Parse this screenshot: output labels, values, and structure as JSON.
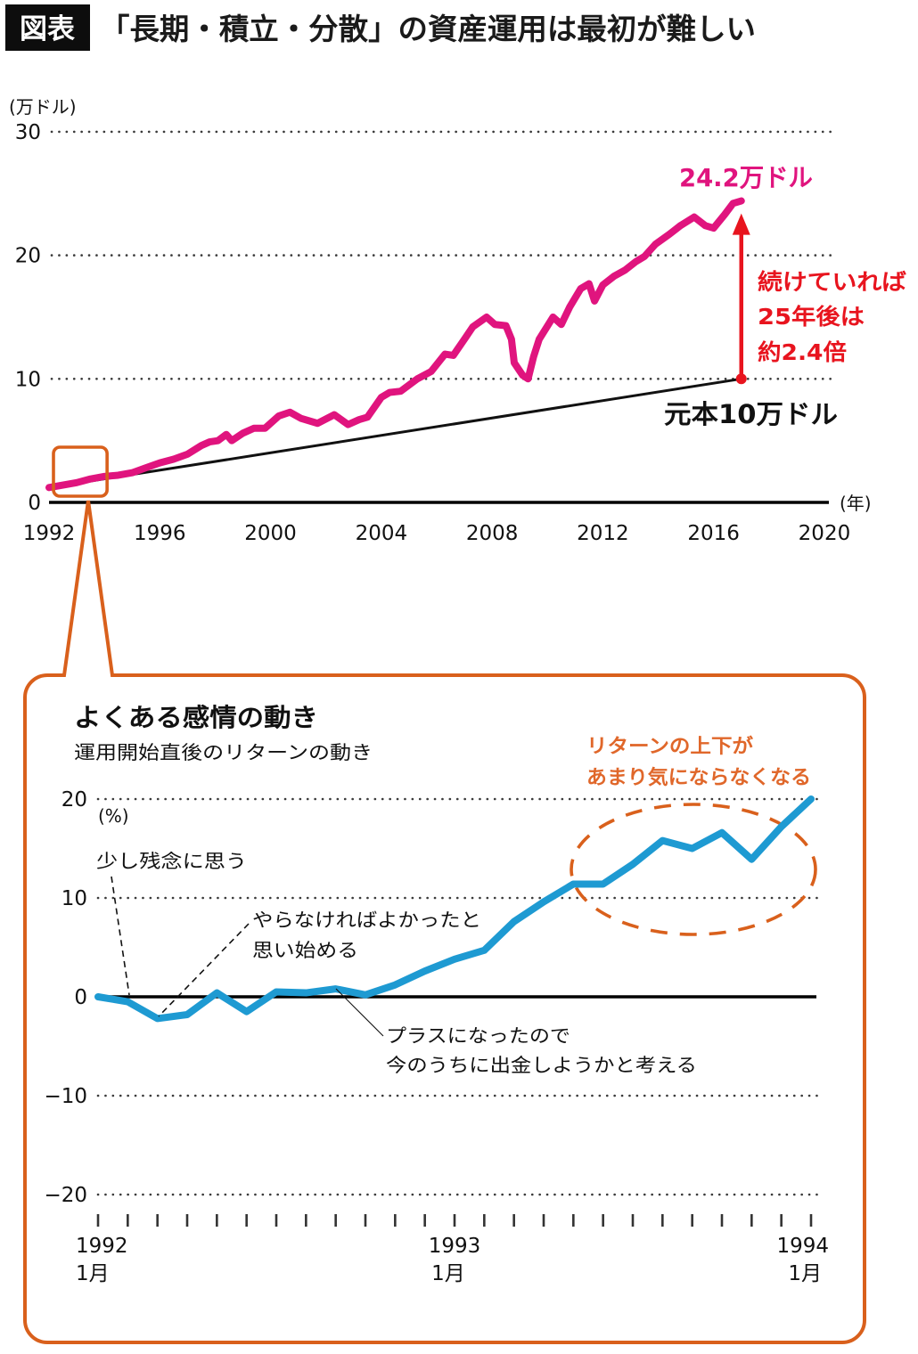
{
  "figure": {
    "badge": "図表",
    "title": "「長期・積立・分散」の資産運用は最初が難しい",
    "colors": {
      "accent_orange": "#D9601C",
      "portfolio_pink": "#E0147E",
      "highlight_red": "#E8141E",
      "return_blue": "#1E9AD2",
      "annotation_orange": "#E0672A"
    }
  },
  "chart_data": [
    {
      "type": "line",
      "title": "",
      "ylabel": "(万ドル)",
      "xlabel": "(年)",
      "xlim": [
        1992,
        2020
      ],
      "ylim": [
        0,
        30
      ],
      "grid": true,
      "yticks": [
        0,
        10,
        20,
        30
      ],
      "ytick_labels": [
        "0",
        "10",
        "20",
        "30"
      ],
      "xticks": [
        1992,
        1996,
        2000,
        2004,
        2008,
        2012,
        2016,
        2020
      ],
      "xtick_labels": [
        "1992",
        "1996",
        "2000",
        "2004",
        "2008",
        "2012",
        "2016",
        "2020"
      ],
      "series": [
        {
          "key": "portfolio",
          "color": "#E0147E",
          "points": [
            [
              1992.0,
              1.2
            ],
            [
              1992.5,
              1.4
            ],
            [
              1993.0,
              1.6
            ],
            [
              1993.5,
              1.9
            ],
            [
              1994.0,
              2.1
            ],
            [
              1994.5,
              2.2
            ],
            [
              1995.0,
              2.4
            ],
            [
              1995.5,
              2.8
            ],
            [
              1996.0,
              3.2
            ],
            [
              1996.5,
              3.5
            ],
            [
              1997.0,
              3.9
            ],
            [
              1997.5,
              4.6
            ],
            [
              1997.8,
              4.9
            ],
            [
              1998.1,
              5.0
            ],
            [
              1998.4,
              5.5
            ],
            [
              1998.6,
              5.0
            ],
            [
              1999.0,
              5.6
            ],
            [
              1999.4,
              6.0
            ],
            [
              1999.8,
              6.0
            ],
            [
              2000.3,
              7.0
            ],
            [
              2000.7,
              7.3
            ],
            [
              2001.1,
              6.8
            ],
            [
              2001.7,
              6.4
            ],
            [
              2002.3,
              7.1
            ],
            [
              2002.8,
              6.3
            ],
            [
              2003.2,
              6.7
            ],
            [
              2003.5,
              6.9
            ],
            [
              2004.0,
              8.5
            ],
            [
              2004.3,
              8.9
            ],
            [
              2004.7,
              9.0
            ],
            [
              2005.3,
              10.0
            ],
            [
              2005.8,
              10.6
            ],
            [
              2006.3,
              12.0
            ],
            [
              2006.6,
              11.9
            ],
            [
              2007.0,
              13.2
            ],
            [
              2007.3,
              14.2
            ],
            [
              2007.8,
              15.0
            ],
            [
              2008.1,
              14.4
            ],
            [
              2008.5,
              14.3
            ],
            [
              2008.7,
              13.2
            ],
            [
              2008.8,
              11.3
            ],
            [
              2009.1,
              10.3
            ],
            [
              2009.3,
              10.0
            ],
            [
              2009.5,
              11.8
            ],
            [
              2009.7,
              13.2
            ],
            [
              2010.2,
              15.0
            ],
            [
              2010.5,
              14.4
            ],
            [
              2010.8,
              15.8
            ],
            [
              2011.2,
              17.3
            ],
            [
              2011.5,
              17.7
            ],
            [
              2011.7,
              16.3
            ],
            [
              2012.0,
              17.6
            ],
            [
              2012.4,
              18.3
            ],
            [
              2012.8,
              18.8
            ],
            [
              2013.2,
              19.5
            ],
            [
              2013.5,
              19.9
            ],
            [
              2013.9,
              20.9
            ],
            [
              2014.4,
              21.7
            ],
            [
              2014.8,
              22.4
            ],
            [
              2015.3,
              23.1
            ],
            [
              2015.7,
              22.4
            ],
            [
              2016.0,
              22.2
            ],
            [
              2016.4,
              23.3
            ],
            [
              2016.7,
              24.2
            ],
            [
              2017.0,
              24.4
            ]
          ]
        },
        {
          "key": "principal",
          "color": "#111111",
          "points": [
            [
              1992.0,
              1.2
            ],
            [
              2017.0,
              10.0
            ]
          ]
        }
      ],
      "annotations": {
        "final_value_label": "24.2万ドル",
        "growth_note": [
          "続けていれば",
          "25年後は",
          "約2.4倍"
        ],
        "principal_label": "元本10万ドル"
      },
      "highlight_xrange": [
        1992,
        1994
      ]
    },
    {
      "type": "line",
      "title": "よくある感情の動き",
      "subtitle": "運用開始直後のリターンの動き",
      "ylabel": "(%)",
      "ylim": [
        -20,
        20
      ],
      "grid": true,
      "yticks": [
        -20,
        -10,
        0,
        10,
        20
      ],
      "ytick_labels": [
        "−20",
        "−10",
        "0",
        "10",
        "20"
      ],
      "categories": [
        "1992-01",
        "1992-02",
        "1992-03",
        "1992-04",
        "1992-05",
        "1992-06",
        "1992-07",
        "1992-08",
        "1992-09",
        "1992-10",
        "1992-11",
        "1992-12",
        "1993-01",
        "1993-02",
        "1993-03",
        "1993-04",
        "1993-05",
        "1993-06",
        "1993-07",
        "1993-08",
        "1993-09",
        "1993-10",
        "1993-11",
        "1993-12",
        "1994-01"
      ],
      "xtick_labels": [
        {
          "at": "1992-01",
          "year": "1992",
          "month": "1月"
        },
        {
          "at": "1993-01",
          "year": "1993",
          "month": "1月"
        },
        {
          "at": "1994-01",
          "year": "1994",
          "month": "1月"
        }
      ],
      "series": [
        {
          "key": "return",
          "color": "#1E9AD2",
          "values": [
            0.0,
            -0.5,
            -2.2,
            -1.8,
            0.4,
            -1.5,
            0.5,
            0.4,
            0.8,
            0.2,
            1.2,
            2.6,
            3.8,
            4.7,
            7.6,
            9.6,
            11.4,
            11.4,
            13.4,
            15.8,
            15.0,
            16.6,
            13.9,
            17.2,
            20.0
          ]
        }
      ],
      "annotations": {
        "disappointed": [
          "少し残念に思う"
        ],
        "regret": [
          "やらなければよかったと",
          "思い始める"
        ],
        "withdraw": [
          "プラスになったので",
          "今のうちに出金しようかと考える"
        ],
        "settled": [
          "リターンの上下が",
          "あまり気にならなくなる"
        ]
      }
    }
  ]
}
